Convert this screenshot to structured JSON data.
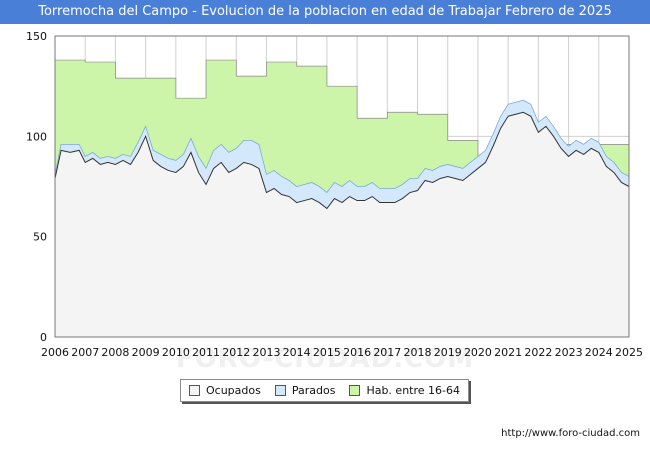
{
  "title": "Torremocha del Campo - Evolucion de la poblacion en edad de Trabajar Febrero de 2025",
  "watermark": "FORO-CIUDAD.COM",
  "url": "http://www.foro-ciudad.com",
  "colors": {
    "title_bg": "#4a7fd8",
    "habitantes": "#ccf5aa",
    "parados": "#d4e8fb",
    "ocupados": "#f4f4f4",
    "line": "#333333"
  },
  "legend": [
    {
      "name": "ocupados",
      "label": "Ocupados",
      "color": "#f4f4f4"
    },
    {
      "name": "parados",
      "label": "Parados",
      "color": "#d4e8fb"
    },
    {
      "name": "habitantes",
      "label": "Hab. entre 16-64",
      "color": "#ccf5aa"
    }
  ],
  "chart_data": {
    "type": "area",
    "title": "Torremocha del Campo - Evolucion de la poblacion en edad de Trabajar Febrero de 2025",
    "xlabel": "",
    "ylabel": "",
    "xlim": [
      2006,
      2025
    ],
    "ylim": [
      0,
      150
    ],
    "yticks": [
      0,
      50,
      100,
      150
    ],
    "xticks": [
      "2006",
      "2007",
      "2008",
      "2009",
      "2010",
      "2011",
      "2012",
      "2013",
      "2014",
      "2015",
      "2016",
      "2017",
      "2018",
      "2019",
      "2020",
      "2021",
      "2022",
      "2023",
      "2024",
      "2025"
    ],
    "grid": true,
    "legend_position": "bottom",
    "habitantes_steps": {
      "x": [
        2006,
        2007,
        2008,
        2009,
        2010,
        2011,
        2012,
        2013,
        2014,
        2015,
        2016,
        2017,
        2018,
        2019,
        2020,
        2021
      ],
      "values": [
        138,
        137,
        129,
        129,
        119,
        138,
        130,
        137,
        135,
        125,
        109,
        112,
        111,
        98,
        90,
        96
      ]
    },
    "series": [
      {
        "name": "Ocupados",
        "x": [
          2006,
          2006.2,
          2006.5,
          2006.8,
          2007,
          2007.25,
          2007.5,
          2007.75,
          2008,
          2008.25,
          2008.5,
          2008.75,
          2009,
          2009.25,
          2009.5,
          2009.75,
          2010,
          2010.25,
          2010.5,
          2010.75,
          2011,
          2011.25,
          2011.5,
          2011.75,
          2012,
          2012.25,
          2012.5,
          2012.75,
          2013,
          2013.25,
          2013.5,
          2013.75,
          2014,
          2014.25,
          2014.5,
          2014.75,
          2015,
          2015.25,
          2015.5,
          2015.75,
          2016,
          2016.25,
          2016.5,
          2016.75,
          2017,
          2017.25,
          2017.5,
          2017.75,
          2018,
          2018.25,
          2018.5,
          2018.75,
          2019,
          2019.25,
          2019.5,
          2019.75,
          2020,
          2020.25,
          2020.5,
          2020.75,
          2021,
          2021.25,
          2021.5,
          2021.75,
          2022,
          2022.25,
          2022.5,
          2022.75,
          2023,
          2023.25,
          2023.5,
          2023.75,
          2024,
          2024.25,
          2024.5,
          2024.75,
          2025
        ],
        "values": [
          79,
          93,
          92,
          93,
          87,
          89,
          86,
          87,
          86,
          88,
          86,
          92,
          100,
          88,
          85,
          83,
          82,
          85,
          92,
          82,
          76,
          84,
          87,
          82,
          84,
          87,
          86,
          84,
          72,
          74,
          71,
          70,
          67,
          68,
          69,
          67,
          64,
          69,
          67,
          70,
          68,
          68,
          70,
          67,
          67,
          67,
          69,
          72,
          73,
          78,
          77,
          79,
          80,
          79,
          78,
          81,
          84,
          87,
          95,
          104,
          110,
          111,
          112,
          110,
          102,
          105,
          100,
          94,
          90,
          93,
          91,
          94,
          92,
          85,
          82,
          77,
          75
        ]
      },
      {
        "name": "Parados",
        "x": [
          2006,
          2006.2,
          2006.5,
          2006.8,
          2007,
          2007.25,
          2007.5,
          2007.75,
          2008,
          2008.25,
          2008.5,
          2008.75,
          2009,
          2009.25,
          2009.5,
          2009.75,
          2010,
          2010.25,
          2010.5,
          2010.75,
          2011,
          2011.25,
          2011.5,
          2011.75,
          2012,
          2012.25,
          2012.5,
          2012.75,
          2013,
          2013.25,
          2013.5,
          2013.75,
          2014,
          2014.25,
          2014.5,
          2014.75,
          2015,
          2015.25,
          2015.5,
          2015.75,
          2016,
          2016.25,
          2016.5,
          2016.75,
          2017,
          2017.25,
          2017.5,
          2017.75,
          2018,
          2018.25,
          2018.5,
          2018.75,
          2019,
          2019.25,
          2019.5,
          2019.75,
          2020,
          2020.25,
          2020.5,
          2020.75,
          2021,
          2021.25,
          2021.5,
          2021.75,
          2022,
          2022.25,
          2022.5,
          2022.75,
          2023,
          2023.25,
          2023.5,
          2023.75,
          2024,
          2024.25,
          2024.5,
          2024.75,
          2025
        ],
        "values": [
          2,
          3,
          4,
          3,
          3,
          3,
          3,
          3,
          3,
          3,
          4,
          5,
          5,
          5,
          6,
          6,
          6,
          6,
          7,
          8,
          8,
          9,
          9,
          10,
          10,
          11,
          12,
          12,
          9,
          9,
          9,
          8,
          8,
          8,
          8,
          8,
          8,
          8,
          8,
          8,
          7,
          7,
          7,
          7,
          7,
          7,
          7,
          7,
          6,
          6,
          6,
          6,
          6,
          6,
          6,
          6,
          6,
          6,
          6,
          6,
          6,
          6,
          6,
          6,
          5,
          5,
          5,
          5,
          5,
          5,
          5,
          5,
          5,
          5,
          5,
          5,
          5
        ]
      }
    ]
  }
}
